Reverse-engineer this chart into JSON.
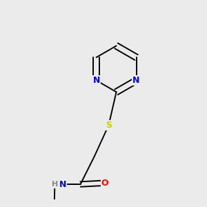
{
  "background_color": "#ebebeb",
  "bond_color": "#000000",
  "atom_colors": {
    "N": "#0000ee",
    "O": "#ff0000",
    "S": "#cccc00",
    "H": "#888888",
    "C": "#000000"
  },
  "font_size_small": 8,
  "font_size": 9,
  "bond_width": 1.4,
  "figsize": [
    3.0,
    3.0
  ],
  "dpi": 100
}
